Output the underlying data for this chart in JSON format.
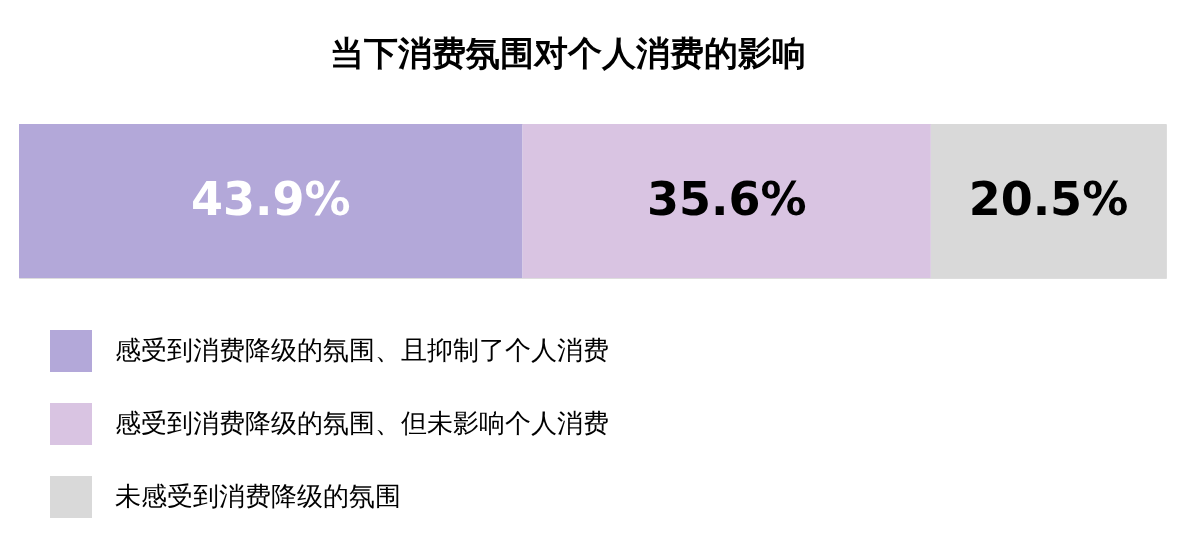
{
  "chart_data": {
    "type": "bar",
    "orientation": "horizontal",
    "stacked": true,
    "title": "当下消费氛围对个人消费的影响",
    "categories": [
      null
    ],
    "series": [
      {
        "name": "感受到消费降级的氛围、且抑制了个人消费",
        "color": "#b3a8d9",
        "values": [
          43.9
        ],
        "value_labels": [
          "43.9%"
        ]
      },
      {
        "name": "感受到消费降级的氛围、但未影响个人消费",
        "color": "#d9c4e2",
        "values": [
          35.6
        ],
        "value_labels": [
          "35.6%"
        ]
      },
      {
        "name": "未感受到消费降级的氛围",
        "color": "#d9d9d9",
        "values": [
          20.5
        ],
        "value_labels": [
          "20.5%"
        ]
      }
    ],
    "legend": "bottom"
  }
}
